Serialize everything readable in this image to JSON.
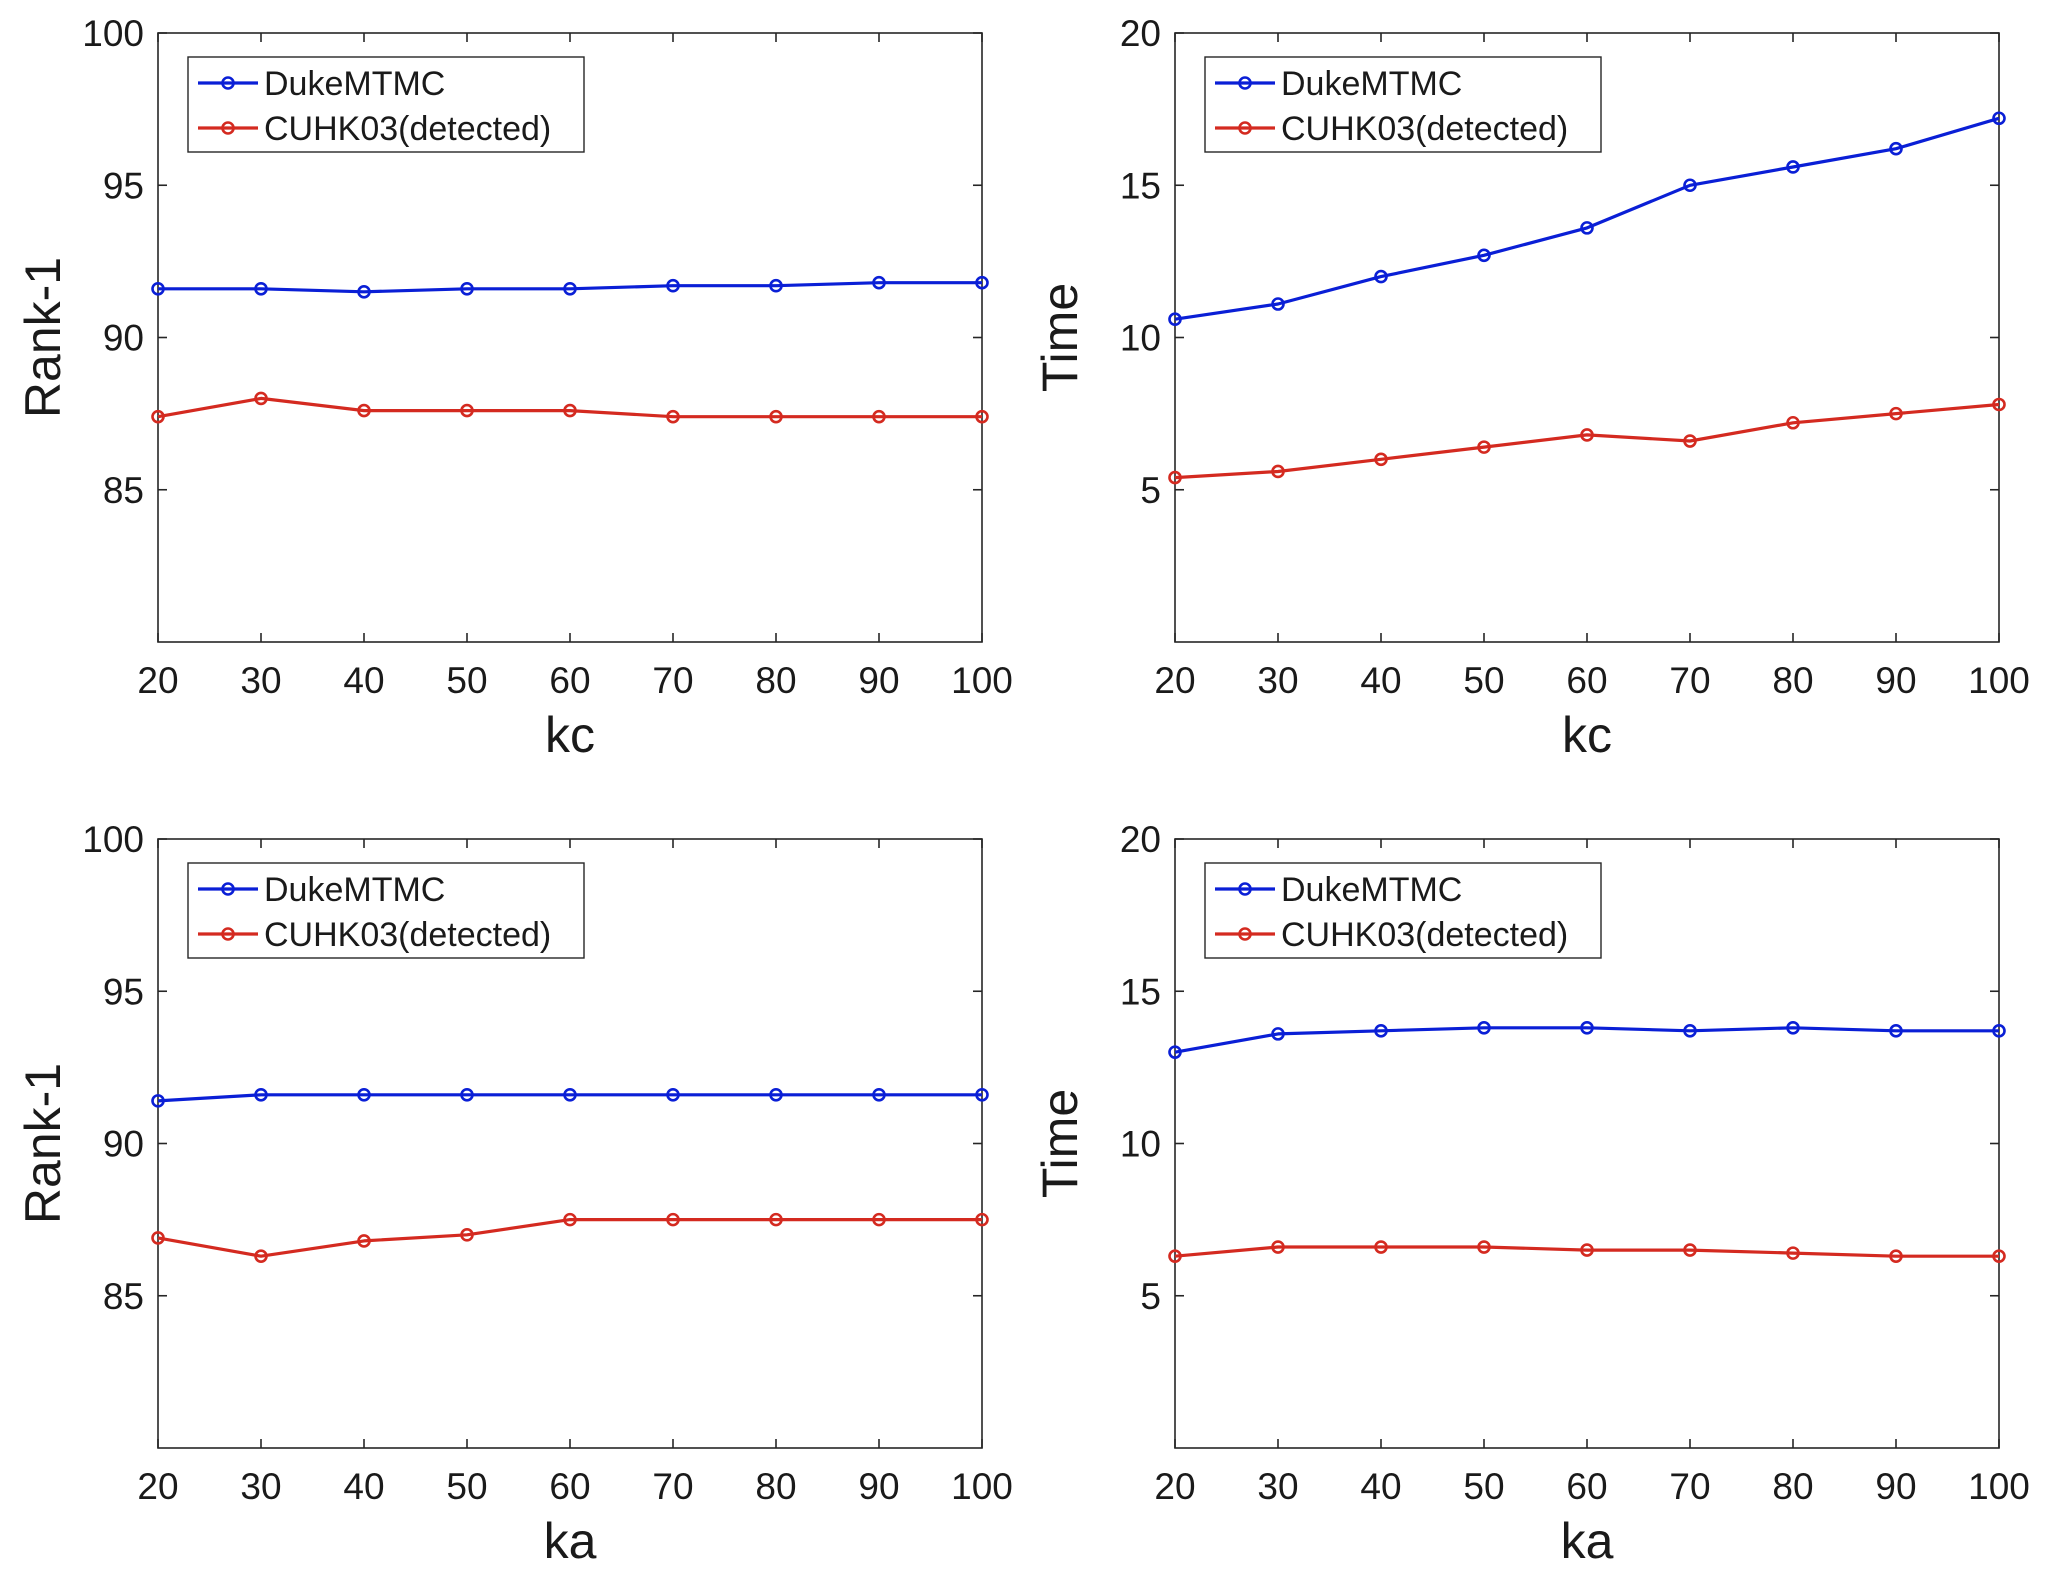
{
  "chart_data": [
    {
      "type": "line",
      "xlabel": "kc",
      "ylabel": "Rank-1",
      "categories": [
        20,
        30,
        40,
        50,
        60,
        70,
        80,
        90,
        100
      ],
      "xticks": [
        "20",
        "30",
        "40",
        "50",
        "60",
        "70",
        "80",
        "90",
        "100"
      ],
      "ylim": [
        80,
        100
      ],
      "yticks": [
        "85",
        "90",
        "95",
        "100"
      ],
      "grid": false,
      "legend_position": "top-left",
      "series": [
        {
          "name": "DukeMTMC",
          "color": "#0a1fd6",
          "values": [
            91.6,
            91.6,
            91.5,
            91.6,
            91.6,
            91.7,
            91.7,
            91.8,
            91.8
          ]
        },
        {
          "name": "CUHK03(detected)",
          "color": "#d42a20",
          "values": [
            87.4,
            88.0,
            87.6,
            87.6,
            87.6,
            87.4,
            87.4,
            87.4,
            87.4
          ]
        }
      ]
    },
    {
      "type": "line",
      "xlabel": "kc",
      "ylabel": "Time",
      "categories": [
        20,
        30,
        40,
        50,
        60,
        70,
        80,
        90,
        100
      ],
      "xticks": [
        "20",
        "30",
        "40",
        "50",
        "60",
        "70",
        "80",
        "90",
        "100"
      ],
      "ylim": [
        0,
        20
      ],
      "yticks": [
        "5",
        "10",
        "15",
        "20"
      ],
      "grid": false,
      "legend_position": "top-left",
      "series": [
        {
          "name": "DukeMTMC",
          "color": "#0a1fd6",
          "values": [
            10.6,
            11.1,
            12.0,
            12.7,
            13.6,
            15.0,
            15.6,
            16.2,
            17.2
          ]
        },
        {
          "name": "CUHK03(detected)",
          "color": "#d42a20",
          "values": [
            5.4,
            5.6,
            6.0,
            6.4,
            6.8,
            6.6,
            7.2,
            7.5,
            7.8
          ]
        }
      ]
    },
    {
      "type": "line",
      "xlabel": "ka",
      "ylabel": "Rank-1",
      "categories": [
        20,
        30,
        40,
        50,
        60,
        70,
        80,
        90,
        100
      ],
      "xticks": [
        "20",
        "30",
        "40",
        "50",
        "60",
        "70",
        "80",
        "90",
        "100"
      ],
      "ylim": [
        80,
        100
      ],
      "yticks": [
        "85",
        "90",
        "95",
        "100"
      ],
      "grid": false,
      "legend_position": "top-left",
      "series": [
        {
          "name": "DukeMTMC",
          "color": "#0a1fd6",
          "values": [
            91.4,
            91.6,
            91.6,
            91.6,
            91.6,
            91.6,
            91.6,
            91.6,
            91.6
          ]
        },
        {
          "name": "CUHK03(detected)",
          "color": "#d42a20",
          "values": [
            86.9,
            86.3,
            86.8,
            87.0,
            87.5,
            87.5,
            87.5,
            87.5,
            87.5
          ]
        }
      ]
    },
    {
      "type": "line",
      "xlabel": "ka",
      "ylabel": "Time",
      "categories": [
        20,
        30,
        40,
        50,
        60,
        70,
        80,
        90,
        100
      ],
      "xticks": [
        "20",
        "30",
        "40",
        "50",
        "60",
        "70",
        "80",
        "90",
        "100"
      ],
      "ylim": [
        0,
        20
      ],
      "yticks": [
        "5",
        "10",
        "15",
        "20"
      ],
      "grid": false,
      "legend_position": "top-left",
      "series": [
        {
          "name": "DukeMTMC",
          "color": "#0a1fd6",
          "values": [
            13.0,
            13.6,
            13.7,
            13.8,
            13.8,
            13.7,
            13.8,
            13.7,
            13.7
          ]
        },
        {
          "name": "CUHK03(detected)",
          "color": "#d42a20",
          "values": [
            6.3,
            6.6,
            6.6,
            6.6,
            6.5,
            6.5,
            6.4,
            6.3,
            6.3
          ]
        }
      ]
    }
  ]
}
